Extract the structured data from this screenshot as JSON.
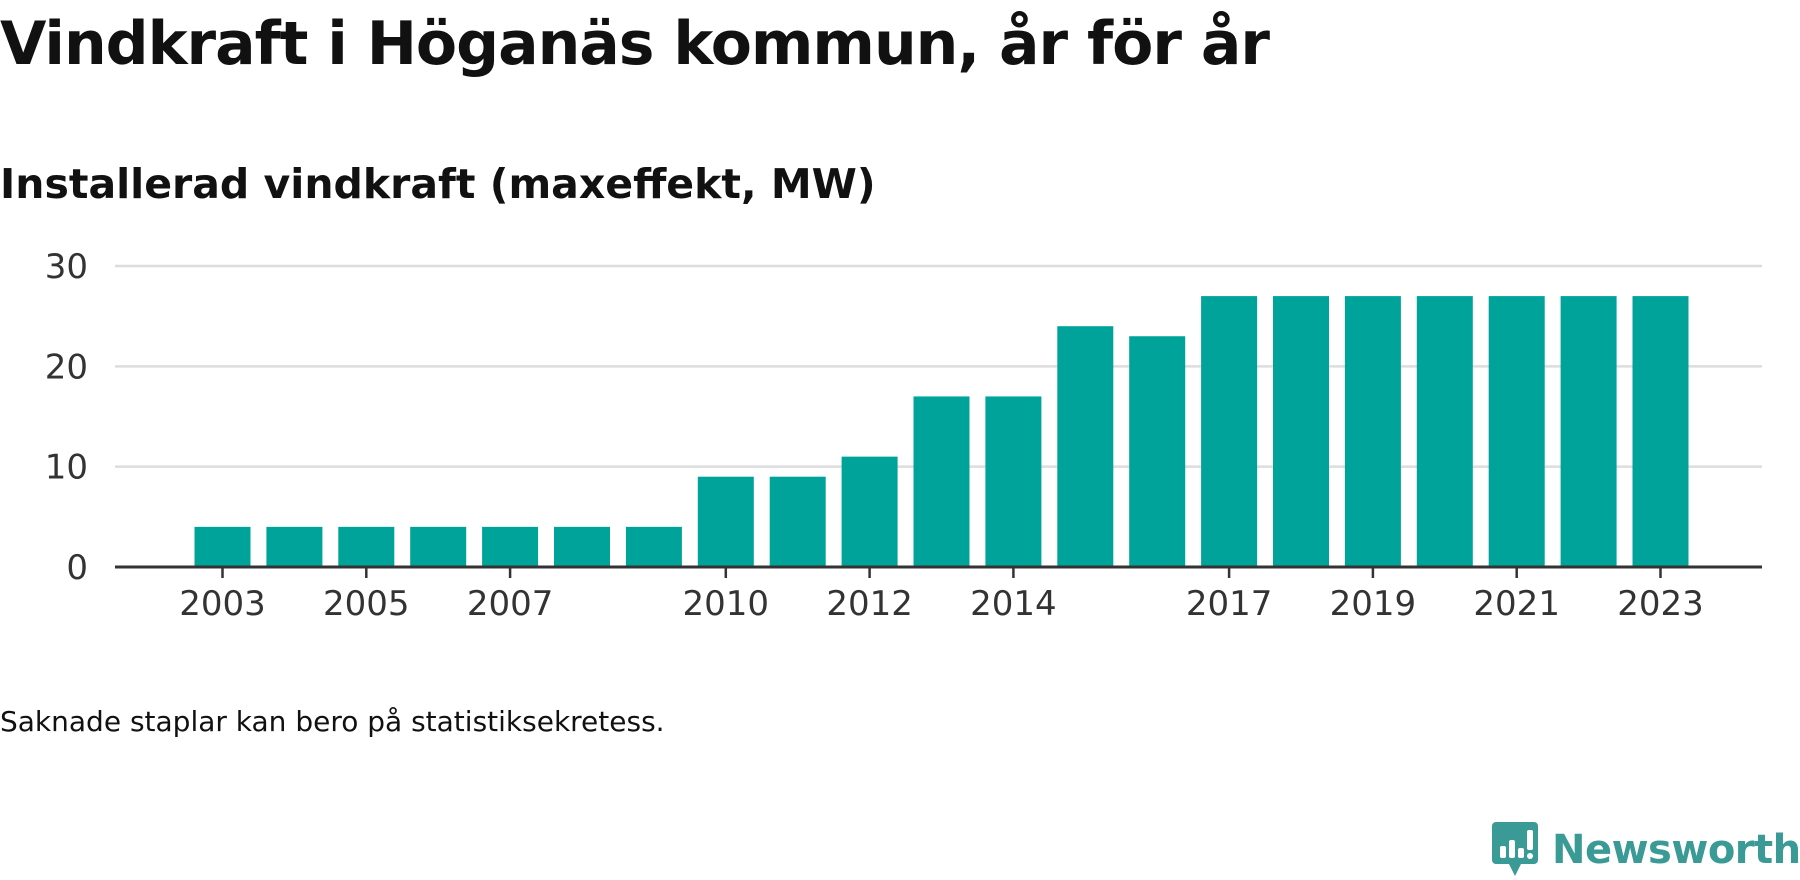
{
  "title": "Vindkraft i Höganäs kommun, år för år",
  "subtitle": "Installerad vindkraft (maxeffekt, MW)",
  "note": "Saknade staplar kan bero på statistiksekretess.",
  "logo": {
    "text": "Newsworthy",
    "icon": "newsworthy-logo-icon",
    "color": "#3a9a95"
  },
  "chart_data": {
    "type": "bar",
    "title": "Vindkraft i Höganäs kommun, år för år",
    "subtitle": "Installerad vindkraft (maxeffekt, MW)",
    "xlabel": "",
    "ylabel": "",
    "ylim": [
      0,
      30
    ],
    "yticks": [
      0,
      10,
      20,
      30
    ],
    "grid": true,
    "bar_color": "#00a39a",
    "categories": [
      2003,
      2004,
      2005,
      2006,
      2007,
      2008,
      2009,
      2010,
      2011,
      2012,
      2013,
      2014,
      2015,
      2016,
      2017,
      2018,
      2019,
      2020,
      2021,
      2022,
      2023
    ],
    "values": [
      4,
      4,
      4,
      4,
      4,
      4,
      4,
      9,
      9,
      11,
      17,
      17,
      24,
      23,
      27,
      27,
      27,
      27,
      27,
      27,
      27
    ],
    "x_tick_labels": [
      "2003",
      "2005",
      "2007",
      "2010",
      "2012",
      "2014",
      "2017",
      "2019",
      "2021",
      "2023"
    ]
  }
}
